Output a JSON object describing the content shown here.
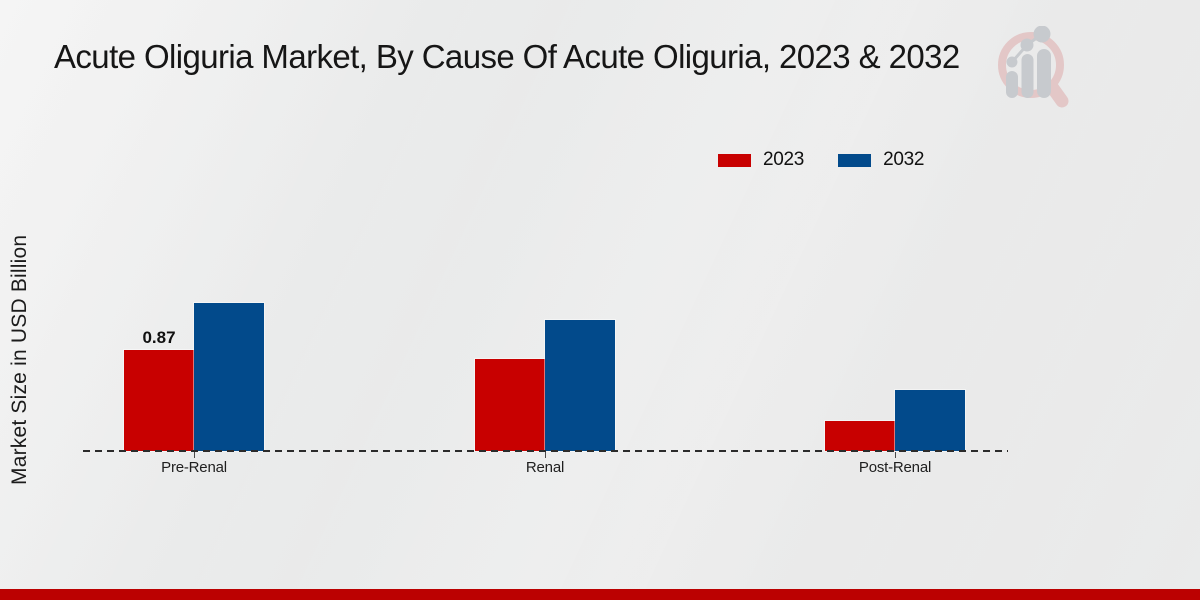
{
  "page": {
    "footer_bar_color": "#bb0101"
  },
  "watermark": {
    "icon": "magnifier-growth-chart-logo",
    "ring_color": "#e3c6c6",
    "bars_color": "#c6c9cd"
  },
  "chart_data": {
    "type": "bar",
    "title": "Acute Oliguria Market, By Cause Of Acute Oliguria, 2023 & 2032",
    "ylabel": "Market Size in USD Billion",
    "xlabel": "",
    "categories": [
      "Pre-Renal",
      "Renal",
      "Post-Renal"
    ],
    "series": [
      {
        "name": "2023",
        "color": "#c80000",
        "values": [
          0.87,
          0.79,
          0.26
        ]
      },
      {
        "name": "2032",
        "color": "#024a8b",
        "values": [
          1.28,
          1.13,
          0.53
        ]
      }
    ],
    "bar_value_labels": [
      {
        "series_index": 0,
        "category_index": 0,
        "text": "0.87"
      }
    ],
    "ylim": [
      0,
      1.4
    ],
    "grid": false,
    "y_axis_ticks_visible": false,
    "legend_position": "top-right",
    "baseline_style": "dashed"
  }
}
